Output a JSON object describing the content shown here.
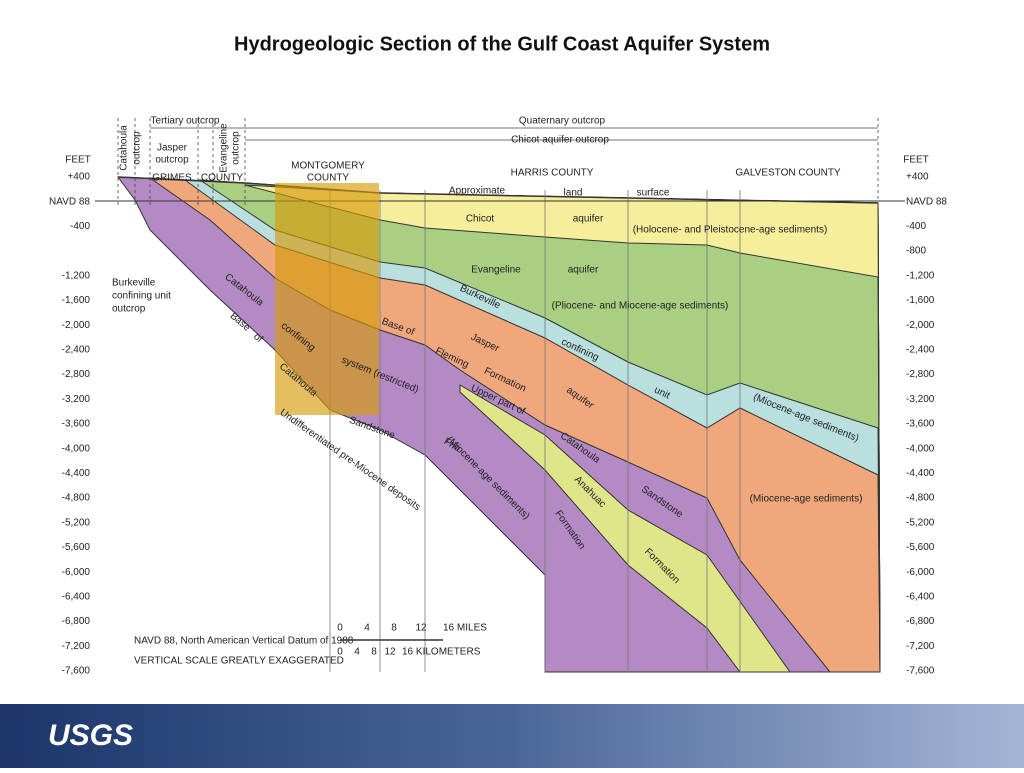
{
  "title": "Hydrogeologic Section of the Gulf Coast Aquifer System",
  "axis": {
    "left_unit": "FEET",
    "right_unit": "FEET",
    "left_ticks": [
      "+400",
      "NAVD 88",
      "-400",
      "-1,200",
      "-1,600",
      "-2,000",
      "-2,400",
      "-2,800",
      "-3,200",
      "-3,600",
      "-4,000",
      "-4,400",
      "-4,800",
      "-5,200",
      "-5,600",
      "-6,000",
      "-6,400",
      "-6,800",
      "-7,200",
      "-7,600"
    ],
    "right_ticks": [
      "+400",
      "NAVD 88",
      "-400",
      "-800",
      "-1,200",
      "-1,600",
      "-2,000",
      "-2,400",
      "-2,800",
      "-3,200",
      "-3,600",
      "-4,000",
      "-4,400",
      "-4,800",
      "-5,200",
      "-5,600",
      "-6,000",
      "-6,400",
      "-6,800",
      "-7,200",
      "-7,600"
    ]
  },
  "labels": [
    "Tertiary outcrop",
    "Quaternary outcrop",
    "Chicot aquifer outcrop",
    "Catahoula",
    "outcrop",
    "Jasper",
    "outcrop",
    "Evangeline",
    "outcrop",
    "GRIMES",
    "COUNTY",
    "MONTGOMERY",
    "COUNTY",
    "HARRIS COUNTY",
    "GALVESTON COUNTY",
    "Approximate",
    "land",
    "surface",
    "Chicot",
    "aquifer",
    "(Holocene- and Pleistocene-age sediments)",
    "Evangeline",
    "aquifer",
    "(Pliocene- and Miocene-age sediments)",
    "Burkeville",
    "confining",
    "unit",
    "(Miocene-age sediments)",
    "(Miocene-age sediments)",
    "Burkeville",
    "confining unit",
    "outcrop",
    "Catahoula",
    "confining",
    "system (restricted)",
    "Base",
    "of",
    "Catahoula",
    "Sandstone",
    "Base of",
    "Fleming",
    "Formation",
    "Jasper",
    "Upper part of",
    "Frio",
    "(Miocene-age sediments)",
    "Formation",
    "Catahoula",
    "aquifer",
    "Anahuac",
    "Sandstone",
    "Formation",
    "Undifferentiated pre-Miocene deposits"
  ],
  "notes": [
    "NAVD 88, North American Vertical Datum of 1988",
    "VERTICAL SCALE GREATLY EXAGGERATED"
  ],
  "scale": {
    "miles": [
      "0",
      "4",
      "8",
      "12",
      "16 MILES"
    ],
    "kilometers": [
      "0",
      "4",
      "8",
      "12",
      "16 KILOMETERS"
    ]
  },
  "footer": {
    "logo": "USGS"
  }
}
